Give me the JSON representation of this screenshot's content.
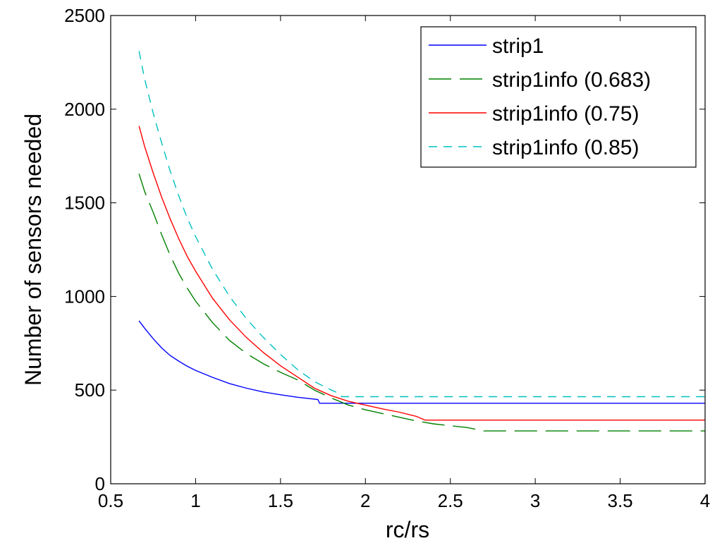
{
  "chart_data": {
    "type": "line",
    "xlabel": "rc/rs",
    "ylabel": "Number of sensors needed",
    "xlim": [
      0.5,
      4
    ],
    "ylim": [
      0,
      2500
    ],
    "xticks": [
      "0.5",
      "1",
      "1.5",
      "2",
      "2.5",
      "3",
      "3.5",
      "4"
    ],
    "yticks": [
      "0",
      "500",
      "1000",
      "1500",
      "2000",
      "2500"
    ],
    "grid": false,
    "legend_position": "top-right",
    "series": [
      {
        "name": "strip1",
        "color": "#0000ff",
        "dash": "solid",
        "x": [
          0.667,
          0.7,
          0.75,
          0.8,
          0.85,
          0.9,
          0.95,
          1.0,
          1.1,
          1.2,
          1.3,
          1.4,
          1.5,
          1.6,
          1.72,
          1.73,
          2.0,
          2.5,
          3.0,
          3.5,
          4.0
        ],
        "y": [
          870,
          830,
          775,
          725,
          685,
          655,
          628,
          605,
          568,
          535,
          510,
          490,
          475,
          462,
          450,
          430,
          430,
          430,
          430,
          430,
          430
        ]
      },
      {
        "name": "strip1info (0.683)",
        "color": "#008000",
        "dash": "longdash",
        "x": [
          0.667,
          0.7,
          0.75,
          0.8,
          0.85,
          0.9,
          0.95,
          1.0,
          1.1,
          1.2,
          1.3,
          1.4,
          1.5,
          1.6,
          1.7,
          1.8,
          1.9,
          2.0,
          2.1,
          2.2,
          2.3,
          2.4,
          2.5,
          2.6,
          2.7,
          3.0,
          3.5,
          4.0
        ],
        "y": [
          1655,
          1560,
          1450,
          1330,
          1220,
          1125,
          1045,
          975,
          860,
          765,
          695,
          640,
          595,
          555,
          500,
          458,
          420,
          395,
          375,
          355,
          335,
          320,
          310,
          300,
          282,
          282,
          282,
          282
        ]
      },
      {
        "name": "strip1info (0.75)",
        "color": "#ff0000",
        "dash": "solid",
        "x": [
          0.667,
          0.7,
          0.75,
          0.8,
          0.85,
          0.9,
          0.95,
          1.0,
          1.1,
          1.2,
          1.3,
          1.4,
          1.5,
          1.6,
          1.7,
          1.8,
          1.9,
          2.0,
          2.1,
          2.2,
          2.3,
          2.35,
          2.5,
          3.0,
          3.5,
          4.0
        ],
        "y": [
          1910,
          1800,
          1660,
          1530,
          1415,
          1310,
          1215,
          1135,
          990,
          875,
          780,
          700,
          630,
          570,
          510,
          470,
          440,
          420,
          400,
          382,
          360,
          340,
          340,
          340,
          340,
          340
        ]
      },
      {
        "name": "strip1info (0.85)",
        "color": "#00c0c0",
        "dash": "dashed",
        "x": [
          0.667,
          0.7,
          0.75,
          0.8,
          0.85,
          0.9,
          0.95,
          1.0,
          1.1,
          1.2,
          1.3,
          1.4,
          1.5,
          1.6,
          1.7,
          1.8,
          1.85,
          1.86,
          2.0,
          2.5,
          3.0,
          3.5,
          4.0
        ],
        "y": [
          2310,
          2160,
          1980,
          1820,
          1670,
          1540,
          1420,
          1320,
          1145,
          1000,
          880,
          780,
          690,
          610,
          545,
          500,
          480,
          465,
          465,
          465,
          465,
          465,
          465
        ]
      }
    ]
  }
}
